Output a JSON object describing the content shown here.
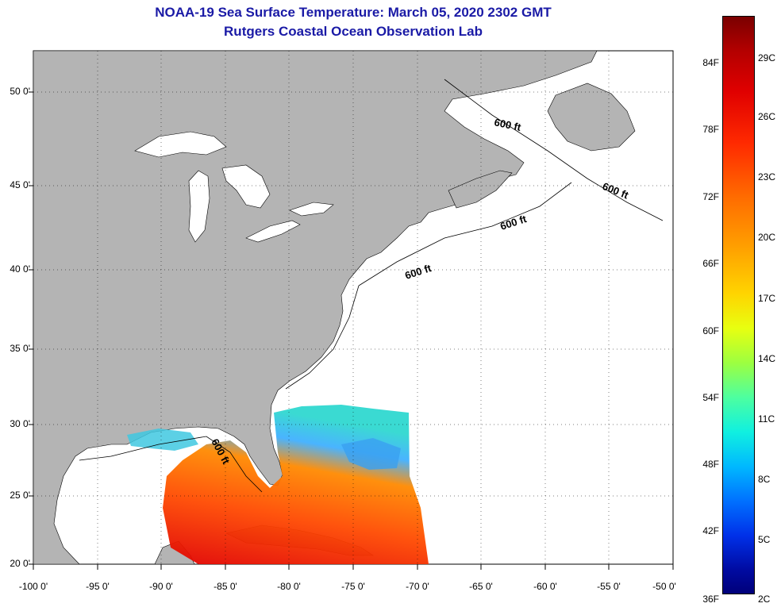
{
  "title": {
    "line1": "NOAA-19 Sea Surface Temperature:  March 05, 2020 2302 GMT",
    "line2": "Rutgers Coastal Ocean Observation Lab"
  },
  "map": {
    "lon_range": [
      -100,
      -50
    ],
    "lat_range": [
      20,
      52.5
    ],
    "land_color": "#b4b4b4",
    "grid": "dotted",
    "lat_ticks": [
      {
        "value": 50,
        "label": "50 0'"
      },
      {
        "value": 45,
        "label": "45 0'"
      },
      {
        "value": 40,
        "label": "40 0'"
      },
      {
        "value": 35,
        "label": "35 0'"
      },
      {
        "value": 30,
        "label": "30 0'"
      },
      {
        "value": 25,
        "label": "25 0'"
      },
      {
        "value": 20,
        "label": "20 0'"
      }
    ],
    "lon_ticks": [
      {
        "value": -100,
        "label": "-100 0'"
      },
      {
        "value": -95,
        "label": "-95 0'"
      },
      {
        "value": -90,
        "label": "-90 0'"
      },
      {
        "value": -85,
        "label": "-85 0'"
      },
      {
        "value": -80,
        "label": "-80 0'"
      },
      {
        "value": -75,
        "label": "-75 0'"
      },
      {
        "value": -70,
        "label": "-70 0'"
      },
      {
        "value": -65,
        "label": "-65 0'"
      },
      {
        "value": -60,
        "label": "-60 0'"
      },
      {
        "value": -55,
        "label": "-55 0'"
      },
      {
        "value": -50,
        "label": "-50 0'"
      }
    ],
    "contour_labels": [
      "600 ft",
      "600 ft",
      "600 ft",
      "600 ft",
      "600 ft"
    ]
  },
  "colorbar": {
    "fahrenheit": [
      "84F",
      "78F",
      "72F",
      "66F",
      "60F",
      "54F",
      "48F",
      "42F",
      "36F"
    ],
    "celsius": [
      "29C",
      "26C",
      "23C",
      "20C",
      "17C",
      "14C",
      "11C",
      "8C",
      "5C",
      "2C"
    ]
  }
}
